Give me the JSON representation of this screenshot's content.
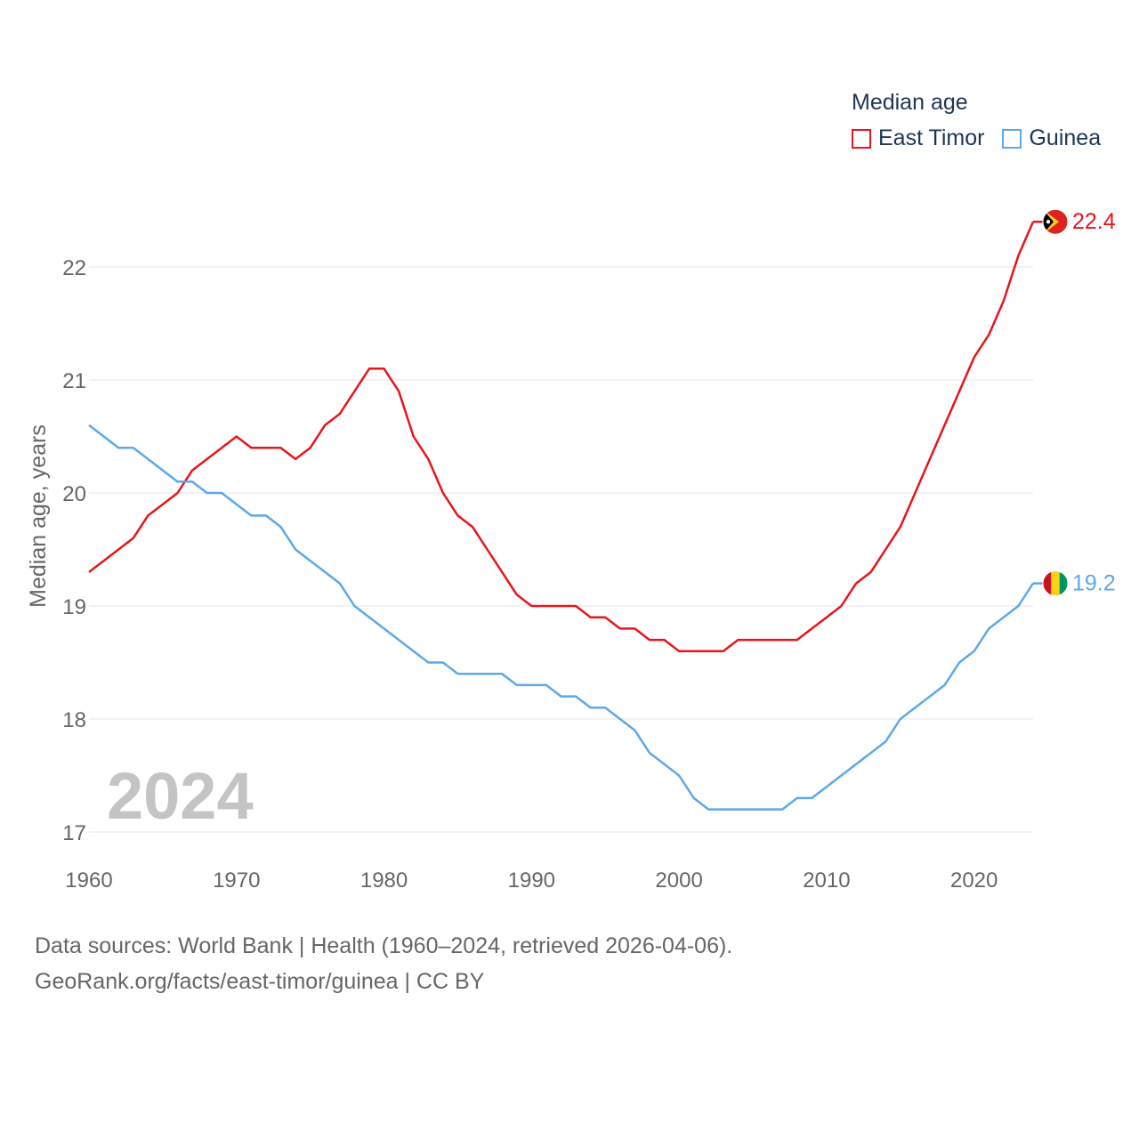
{
  "legend": {
    "title": "Median age",
    "items": [
      {
        "label": "East Timor",
        "color": "#e8151b"
      },
      {
        "label": "Guinea",
        "color": "#5da8e8"
      }
    ]
  },
  "source": {
    "line1": "Data sources: World Bank | Health (1960–2024, retrieved 2026-04-06).",
    "line2": "GeoRank.org/facts/east-timor/guinea | CC BY"
  },
  "chart_data": {
    "type": "line",
    "ylabel": "Median age, years",
    "xlabel": "",
    "year_overlay": "2024",
    "xlim": [
      1960,
      2024
    ],
    "ylim": [
      17,
      22
    ],
    "xticks": [
      1960,
      1970,
      1980,
      1990,
      2000,
      2010,
      2020
    ],
    "yticks": [
      17,
      18,
      19,
      20,
      21,
      22
    ],
    "grid": true,
    "x": [
      1960,
      1961,
      1962,
      1963,
      1964,
      1965,
      1966,
      1967,
      1968,
      1969,
      1970,
      1971,
      1972,
      1973,
      1974,
      1975,
      1976,
      1977,
      1978,
      1979,
      1980,
      1981,
      1982,
      1983,
      1984,
      1985,
      1986,
      1987,
      1988,
      1989,
      1990,
      1991,
      1992,
      1993,
      1994,
      1995,
      1996,
      1997,
      1998,
      1999,
      2000,
      2001,
      2002,
      2003,
      2004,
      2005,
      2006,
      2007,
      2008,
      2009,
      2010,
      2011,
      2012,
      2013,
      2014,
      2015,
      2016,
      2017,
      2018,
      2019,
      2020,
      2021,
      2022,
      2023,
      2024
    ],
    "series": [
      {
        "name": "East Timor",
        "color": "#e8151b",
        "end_label": "22.4",
        "flag": "east-timor",
        "values": [
          19.3,
          19.4,
          19.5,
          19.6,
          19.8,
          19.9,
          20.0,
          20.2,
          20.3,
          20.4,
          20.5,
          20.4,
          20.4,
          20.4,
          20.3,
          20.4,
          20.6,
          20.7,
          20.9,
          21.1,
          21.1,
          20.9,
          20.5,
          20.3,
          20.0,
          19.8,
          19.7,
          19.5,
          19.3,
          19.1,
          19.0,
          19.0,
          19.0,
          19.0,
          18.9,
          18.9,
          18.8,
          18.8,
          18.7,
          18.7,
          18.6,
          18.6,
          18.6,
          18.6,
          18.7,
          18.7,
          18.7,
          18.7,
          18.7,
          18.8,
          18.9,
          19.0,
          19.2,
          19.3,
          19.5,
          19.7,
          20.0,
          20.3,
          20.6,
          20.9,
          21.2,
          21.4,
          21.7,
          22.1,
          22.4
        ]
      },
      {
        "name": "Guinea",
        "color": "#5da8e8",
        "end_label": "19.2",
        "flag": "guinea",
        "values": [
          20.6,
          20.5,
          20.4,
          20.4,
          20.3,
          20.2,
          20.1,
          20.1,
          20.0,
          20.0,
          19.9,
          19.8,
          19.8,
          19.7,
          19.5,
          19.4,
          19.3,
          19.2,
          19.0,
          18.9,
          18.8,
          18.7,
          18.6,
          18.5,
          18.5,
          18.4,
          18.4,
          18.4,
          18.4,
          18.3,
          18.3,
          18.3,
          18.2,
          18.2,
          18.1,
          18.1,
          18.0,
          17.9,
          17.7,
          17.6,
          17.5,
          17.3,
          17.2,
          17.2,
          17.2,
          17.2,
          17.2,
          17.2,
          17.3,
          17.3,
          17.4,
          17.5,
          17.6,
          17.7,
          17.8,
          18.0,
          18.1,
          18.2,
          18.3,
          18.5,
          18.6,
          18.8,
          18.9,
          19.0,
          19.2
        ]
      }
    ]
  }
}
